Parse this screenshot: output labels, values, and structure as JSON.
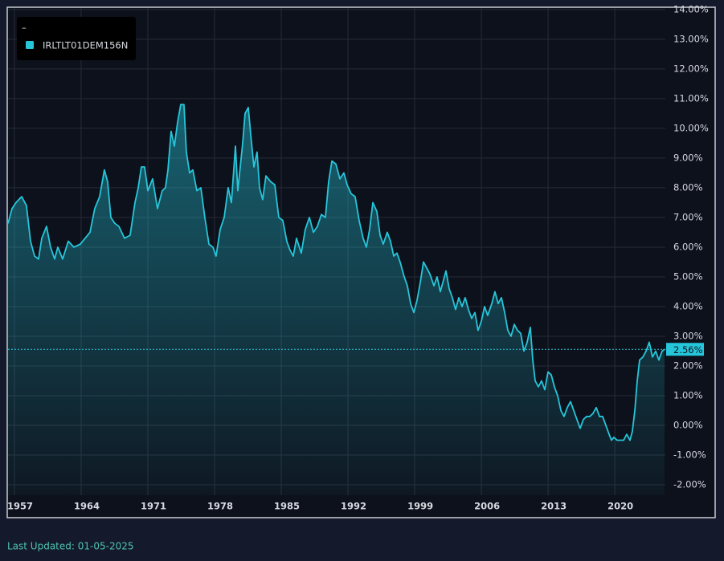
{
  "chart_data": {
    "type": "area",
    "legend_title": "–",
    "footnote": "Last Updated: 01-05-2025",
    "grid": true,
    "legend_position": "top-left",
    "xlim": [
      1956.33,
      2025.3
    ],
    "xticks": [
      1957,
      1964,
      1971,
      1978,
      1985,
      1992,
      1999,
      2006,
      2013,
      2020
    ],
    "ylim": [
      -2.35,
      14.05
    ],
    "yticks": [
      {
        "value": -2,
        "label": "-2.00%"
      },
      {
        "value": -1,
        "label": "-1.00%"
      },
      {
        "value": 0,
        "label": "0.00%"
      },
      {
        "value": 1,
        "label": "1.00%"
      },
      {
        "value": 2,
        "label": "2.00%"
      },
      {
        "value": 3,
        "label": "3.00%"
      },
      {
        "value": 4,
        "label": "4.00%"
      },
      {
        "value": 5,
        "label": "5.00%"
      },
      {
        "value": 6,
        "label": "6.00%"
      },
      {
        "value": 7,
        "label": "7.00%"
      },
      {
        "value": 8,
        "label": "8.00%"
      },
      {
        "value": 9,
        "label": "9.00%"
      },
      {
        "value": 10,
        "label": "10.00%"
      },
      {
        "value": 11,
        "label": "11.00%"
      },
      {
        "value": 12,
        "label": "12.00%"
      },
      {
        "value": 13,
        "label": "13.00%"
      },
      {
        "value": 14,
        "label": "14.00%"
      }
    ],
    "reference_line": {
      "value": 2.56,
      "label": "2.56%"
    },
    "x": [
      1956.33,
      1956.75,
      1957.17,
      1957.76,
      1958.26,
      1958.69,
      1959.11,
      1959.53,
      1959.87,
      1960.37,
      1960.79,
      1961.22,
      1961.55,
      1962.06,
      1962.65,
      1963.24,
      1963.91,
      1964.42,
      1964.93,
      1965.43,
      1965.94,
      1966.44,
      1966.78,
      1967.12,
      1967.54,
      1967.96,
      1968.55,
      1969.14,
      1969.65,
      1969.99,
      1970.32,
      1970.66,
      1971.0,
      1971.5,
      1972.01,
      1972.51,
      1972.85,
      1973.11,
      1973.44,
      1973.78,
      1974.12,
      1974.45,
      1974.79,
      1975.04,
      1975.38,
      1975.72,
      1976.14,
      1976.56,
      1976.98,
      1977.41,
      1977.83,
      1978.16,
      1978.59,
      1979.01,
      1979.43,
      1979.77,
      1980.19,
      1980.44,
      1980.95,
      1981.2,
      1981.54,
      1981.79,
      1982.13,
      1982.46,
      1982.72,
      1983.05,
      1983.39,
      1983.9,
      1984.32,
      1984.74,
      1985.16,
      1985.58,
      1985.92,
      1986.26,
      1986.6,
      1987.1,
      1987.52,
      1987.95,
      1988.37,
      1988.79,
      1989.21,
      1989.63,
      1989.97,
      1990.31,
      1990.73,
      1991.15,
      1991.57,
      1991.91,
      1992.33,
      1992.75,
      1993.17,
      1993.59,
      1993.93,
      1994.27,
      1994.61,
      1995.03,
      1995.37,
      1995.7,
      1996.12,
      1996.46,
      1996.8,
      1997.14,
      1997.47,
      1997.9,
      1998.23,
      1998.57,
      1998.91,
      1999.24,
      1999.58,
      1999.92,
      2000.26,
      2000.59,
      2001.02,
      2001.35,
      2001.69,
      2002.03,
      2002.28,
      2002.62,
      2002.95,
      2003.29,
      2003.63,
      2003.97,
      2004.3,
      2004.64,
      2004.98,
      2005.32,
      2005.65,
      2005.99,
      2006.33,
      2006.66,
      2007.09,
      2007.42,
      2007.76,
      2008.1,
      2008.44,
      2008.77,
      2009.11,
      2009.45,
      2009.78,
      2010.12,
      2010.46,
      2010.8,
      2011.13,
      2011.39,
      2011.64,
      2011.98,
      2012.31,
      2012.65,
      2012.99,
      2013.33,
      2013.66,
      2014.0,
      2014.34,
      2014.67,
      2015.01,
      2015.35,
      2015.69,
      2016.02,
      2016.36,
      2016.7,
      2017.04,
      2017.37,
      2017.71,
      2018.05,
      2018.39,
      2018.72,
      2019.06,
      2019.4,
      2019.65,
      2019.9,
      2020.24,
      2020.58,
      2020.92,
      2021.25,
      2021.59,
      2021.84,
      2022.1,
      2022.35,
      2022.6,
      2022.94,
      2023.28,
      2023.61,
      2023.95,
      2024.29,
      2024.62,
      2024.96,
      2025.21
    ],
    "series": [
      {
        "name": "IRLTLT01DEM156N",
        "color": "#26c6da",
        "values": [
          6.8,
          7.3,
          7.5,
          7.7,
          7.4,
          6.2,
          5.7,
          5.6,
          6.3,
          6.7,
          6.0,
          5.6,
          6.0,
          5.6,
          6.2,
          6.0,
          6.1,
          6.3,
          6.5,
          7.3,
          7.7,
          8.6,
          8.2,
          7.0,
          6.8,
          6.7,
          6.3,
          6.4,
          7.5,
          8.0,
          8.7,
          8.7,
          7.9,
          8.3,
          7.3,
          7.9,
          8.0,
          8.6,
          9.9,
          9.4,
          10.2,
          10.8,
          10.8,
          9.2,
          8.5,
          8.6,
          7.9,
          8.0,
          7.0,
          6.1,
          6.0,
          5.7,
          6.6,
          7.0,
          8.0,
          7.5,
          9.4,
          7.9,
          9.5,
          10.5,
          10.7,
          9.8,
          8.7,
          9.2,
          8.0,
          7.6,
          8.4,
          8.2,
          8.1,
          7.0,
          6.9,
          6.2,
          5.9,
          5.7,
          6.3,
          5.8,
          6.6,
          7.0,
          6.5,
          6.7,
          7.1,
          7.0,
          8.2,
          8.9,
          8.8,
          8.3,
          8.5,
          8.1,
          7.8,
          7.7,
          6.9,
          6.3,
          6.0,
          6.6,
          7.5,
          7.2,
          6.4,
          6.1,
          6.5,
          6.2,
          5.7,
          5.8,
          5.5,
          5.0,
          4.7,
          4.1,
          3.8,
          4.2,
          4.8,
          5.5,
          5.3,
          5.1,
          4.7,
          5.0,
          4.5,
          4.9,
          5.2,
          4.6,
          4.3,
          3.9,
          4.3,
          4.0,
          4.3,
          3.9,
          3.6,
          3.8,
          3.2,
          3.5,
          4.0,
          3.7,
          4.1,
          4.5,
          4.1,
          4.3,
          3.8,
          3.2,
          3.0,
          3.4,
          3.2,
          3.1,
          2.5,
          2.8,
          3.3,
          2.2,
          1.5,
          1.3,
          1.5,
          1.2,
          1.8,
          1.7,
          1.3,
          1.0,
          0.5,
          0.3,
          0.6,
          0.8,
          0.5,
          0.2,
          -0.1,
          0.2,
          0.3,
          0.3,
          0.4,
          0.6,
          0.3,
          0.3,
          0.0,
          -0.3,
          -0.5,
          -0.4,
          -0.5,
          -0.5,
          -0.5,
          -0.3,
          -0.5,
          -0.2,
          0.5,
          1.5,
          2.2,
          2.3,
          2.5,
          2.8,
          2.3,
          2.5,
          2.2,
          2.5,
          2.56
        ]
      }
    ]
  }
}
